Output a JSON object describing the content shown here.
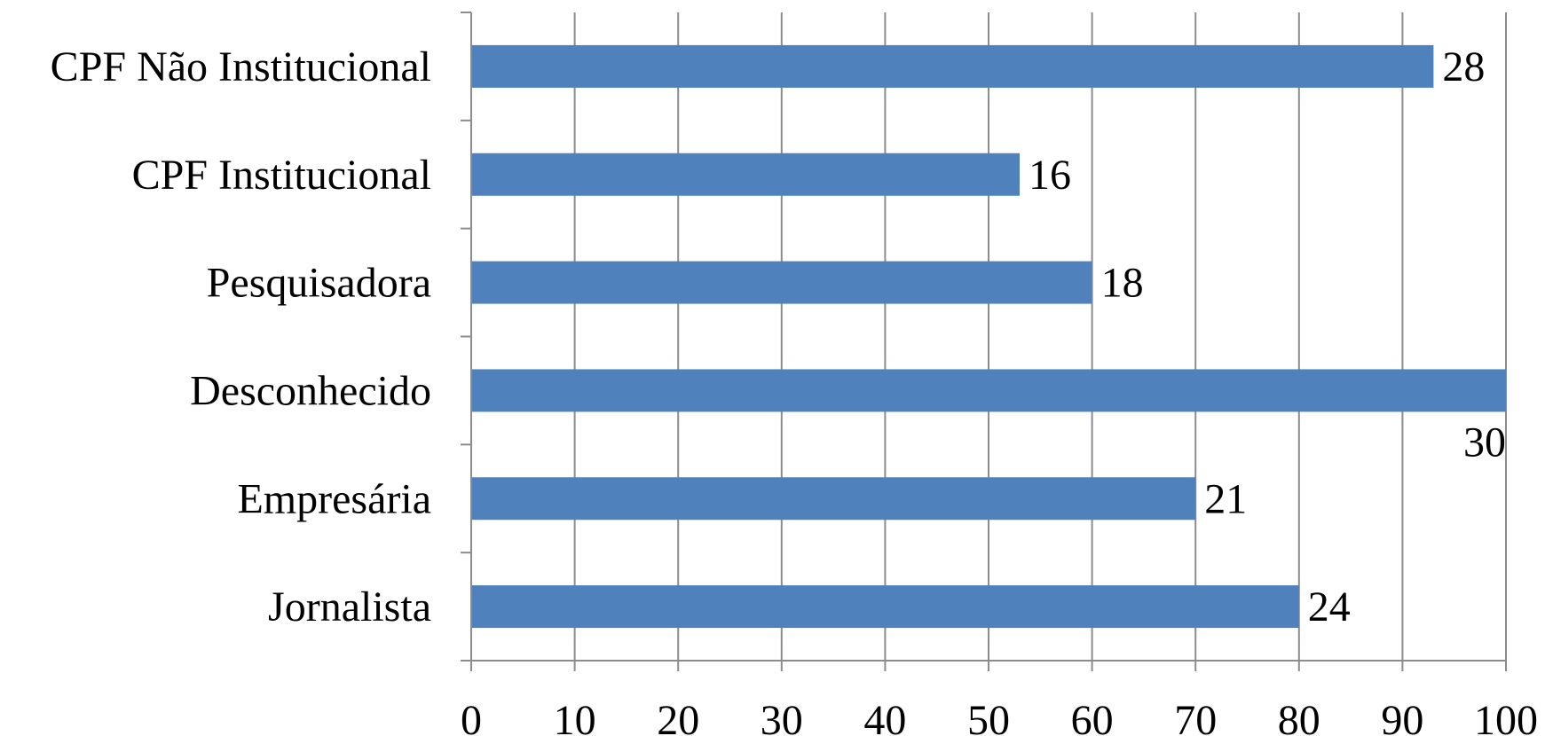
{
  "chart_data": {
    "type": "bar",
    "orientation": "horizontal",
    "categories": [
      "CPF Não Institucional",
      "CPF Institucional",
      "Pesquisadora",
      "Desconhecido",
      "Empresária",
      "Jornalista"
    ],
    "values": [
      93,
      53,
      60,
      100,
      70,
      80
    ],
    "data_labels": [
      "28",
      "16",
      "18",
      "30",
      "21",
      "24"
    ],
    "xlim": [
      0,
      100
    ],
    "xticks": [
      0,
      10,
      20,
      30,
      40,
      50,
      60,
      70,
      80,
      90,
      100
    ],
    "grid": true,
    "legend": "none",
    "title": "",
    "xlabel": "",
    "ylabel": "",
    "bar_color": "#4f81bd",
    "grid_color": "#8c8c8c"
  }
}
